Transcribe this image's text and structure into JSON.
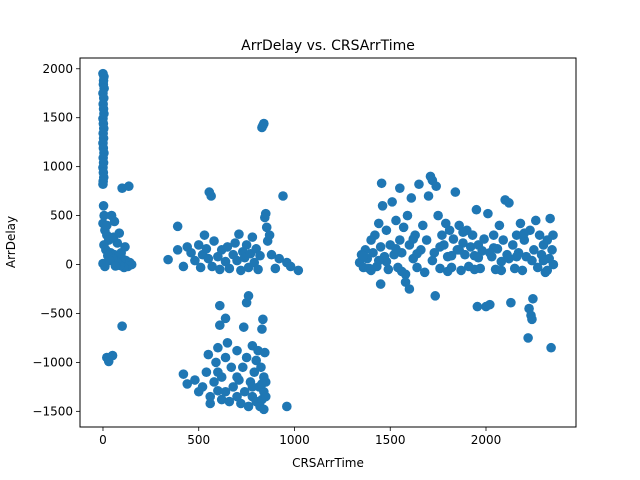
{
  "chart_data": {
    "type": "scatter",
    "title": "ArrDelay vs. CRSArrTime",
    "xlabel": "CRSArrTime",
    "ylabel": "ArrDelay",
    "xlim": [
      -120,
      2470
    ],
    "ylim": [
      -1660,
      2110
    ],
    "xticks": [
      0,
      500,
      1000,
      1500,
      2000
    ],
    "yticks": [
      -1500,
      -1000,
      -500,
      0,
      500,
      1000,
      1500,
      2000
    ],
    "xtick_labels": [
      "0",
      "500",
      "1000",
      "1500",
      "2000"
    ],
    "ytick_labels": [
      "−1500",
      "−1000",
      "−500",
      "0",
      "500",
      "1000",
      "1500",
      "2000"
    ],
    "grid": false,
    "legend": "none",
    "marker_color": "#1f77b4",
    "series": [
      {
        "points": [
          [
            0,
            1950
          ],
          [
            5,
            1920
          ],
          [
            3,
            1880
          ],
          [
            2,
            1840
          ],
          [
            6,
            1800
          ],
          [
            0,
            1750
          ],
          [
            4,
            1700
          ],
          [
            1,
            1640
          ],
          [
            3,
            1590
          ],
          [
            5,
            1540
          ],
          [
            0,
            1490
          ],
          [
            2,
            1440
          ],
          [
            4,
            1390
          ],
          [
            1,
            1340
          ],
          [
            3,
            1290
          ],
          [
            0,
            1240
          ],
          [
            2,
            1190
          ],
          [
            5,
            1140
          ],
          [
            1,
            1090
          ],
          [
            3,
            1040
          ],
          [
            0,
            990
          ],
          [
            2,
            940
          ],
          [
            4,
            890
          ],
          [
            1,
            850
          ],
          [
            0,
            820
          ],
          [
            3,
            600
          ],
          [
            6,
            500
          ],
          [
            0,
            420
          ],
          [
            10,
            350
          ],
          [
            20,
            300
          ],
          [
            30,
            250
          ],
          [
            5,
            200
          ],
          [
            15,
            150
          ],
          [
            40,
            120
          ],
          [
            60,
            100
          ],
          [
            80,
            80
          ],
          [
            100,
            60
          ],
          [
            120,
            40
          ],
          [
            140,
            20
          ],
          [
            150,
            0
          ],
          [
            130,
            -20
          ],
          [
            110,
            -30
          ],
          [
            90,
            -10
          ],
          [
            70,
            30
          ],
          [
            50,
            60
          ],
          [
            25,
            90
          ],
          [
            10,
            -20
          ],
          [
            0,
            10
          ],
          [
            35,
            40
          ],
          [
            65,
            -15
          ],
          [
            95,
            120
          ],
          [
            115,
            180
          ],
          [
            75,
            220
          ],
          [
            55,
            280
          ],
          [
            85,
            320
          ],
          [
            60,
            440
          ],
          [
            45,
            500
          ],
          [
            20,
            400
          ],
          [
            100,
            780
          ],
          [
            135,
            800
          ],
          [
            100,
            -630
          ],
          [
            20,
            -950
          ],
          [
            30,
            -990
          ],
          [
            50,
            -930
          ],
          [
            340,
            50
          ],
          [
            390,
            390
          ],
          [
            390,
            150
          ],
          [
            420,
            -20
          ],
          [
            440,
            180
          ],
          [
            460,
            120
          ],
          [
            480,
            40
          ],
          [
            500,
            200
          ],
          [
            510,
            -30
          ],
          [
            520,
            100
          ],
          [
            530,
            300
          ],
          [
            540,
            160
          ],
          [
            550,
            60
          ],
          [
            555,
            740
          ],
          [
            565,
            700
          ],
          [
            570,
            -20
          ],
          [
            580,
            240
          ],
          [
            600,
            80
          ],
          [
            610,
            -50
          ],
          [
            620,
            150
          ],
          [
            640,
            30
          ],
          [
            650,
            180
          ],
          [
            660,
            -40
          ],
          [
            680,
            100
          ],
          [
            690,
            220
          ],
          [
            700,
            40
          ],
          [
            710,
            310
          ],
          [
            720,
            -60
          ],
          [
            730,
            130
          ],
          [
            740,
            70
          ],
          [
            750,
            200
          ],
          [
            760,
            -30
          ],
          [
            770,
            110
          ],
          [
            780,
            280
          ],
          [
            790,
            20
          ],
          [
            800,
            160
          ],
          [
            810,
            -50
          ],
          [
            820,
            90
          ],
          [
            830,
            1400
          ],
          [
            840,
            1440
          ],
          [
            835,
            1420
          ],
          [
            845,
            480
          ],
          [
            850,
            520
          ],
          [
            855,
            380
          ],
          [
            860,
            240
          ],
          [
            870,
            300
          ],
          [
            880,
            100
          ],
          [
            900,
            -40
          ],
          [
            920,
            60
          ],
          [
            940,
            700
          ],
          [
            960,
            20
          ],
          [
            980,
            -20
          ],
          [
            1020,
            -60
          ],
          [
            420,
            -1120
          ],
          [
            440,
            -1220
          ],
          [
            480,
            -1180
          ],
          [
            500,
            -1300
          ],
          [
            520,
            -1250
          ],
          [
            540,
            -1100
          ],
          [
            550,
            -920
          ],
          [
            560,
            -1350
          ],
          [
            580,
            -1200
          ],
          [
            590,
            -1000
          ],
          [
            600,
            -850
          ],
          [
            600,
            -1290
          ],
          [
            610,
            -620
          ],
          [
            620,
            -1380
          ],
          [
            620,
            -1150
          ],
          [
            640,
            -950
          ],
          [
            640,
            -1300
          ],
          [
            650,
            -800
          ],
          [
            660,
            -1400
          ],
          [
            670,
            -1050
          ],
          [
            680,
            -1250
          ],
          [
            700,
            -880
          ],
          [
            700,
            -1350
          ],
          [
            710,
            -1180
          ],
          [
            720,
            -1420
          ],
          [
            730,
            -1050
          ],
          [
            735,
            -640
          ],
          [
            740,
            -1300
          ],
          [
            750,
            -950
          ],
          [
            750,
            -390
          ],
          [
            760,
            -320
          ],
          [
            760,
            -1450
          ],
          [
            770,
            -1200
          ],
          [
            780,
            -830
          ],
          [
            780,
            -1350
          ],
          [
            790,
            -1100
          ],
          [
            800,
            -1400
          ],
          [
            800,
            -980
          ],
          [
            810,
            -880
          ],
          [
            815,
            -1250
          ],
          [
            820,
            -1450
          ],
          [
            825,
            -1050
          ],
          [
            830,
            -660
          ],
          [
            830,
            -1380
          ],
          [
            835,
            -560
          ],
          [
            840,
            -1300
          ],
          [
            840,
            -1150
          ],
          [
            840,
            -1480
          ],
          [
            845,
            -900
          ],
          [
            850,
            -1200
          ],
          [
            850,
            -1350
          ],
          [
            960,
            -1450
          ],
          [
            610,
            -420
          ],
          [
            640,
            -550
          ],
          [
            560,
            -1420
          ],
          [
            600,
            -1100
          ],
          [
            700,
            -1150
          ],
          [
            780,
            -1250
          ],
          [
            830,
            -1220
          ],
          [
            1340,
            20
          ],
          [
            1350,
            100
          ],
          [
            1360,
            -30
          ],
          [
            1370,
            150
          ],
          [
            1380,
            60
          ],
          [
            1390,
            -40
          ],
          [
            1400,
            250
          ],
          [
            1410,
            120
          ],
          [
            1420,
            300
          ],
          [
            1430,
            -20
          ],
          [
            1440,
            420
          ],
          [
            1450,
            180
          ],
          [
            1450,
            -200
          ],
          [
            1455,
            830
          ],
          [
            1460,
            600
          ],
          [
            1470,
            80
          ],
          [
            1480,
            350
          ],
          [
            1490,
            -50
          ],
          [
            1500,
            200
          ],
          [
            1510,
            640
          ],
          [
            1520,
            100
          ],
          [
            1530,
            450
          ],
          [
            1540,
            -30
          ],
          [
            1550,
            250
          ],
          [
            1550,
            780
          ],
          [
            1560,
            120
          ],
          [
            1570,
            380
          ],
          [
            1580,
            -100
          ],
          [
            1580,
            -180
          ],
          [
            1590,
            500
          ],
          [
            1600,
            200
          ],
          [
            1600,
            -250
          ],
          [
            1610,
            680
          ],
          [
            1620,
            60
          ],
          [
            1630,
            300
          ],
          [
            1640,
            -30
          ],
          [
            1650,
            820
          ],
          [
            1660,
            150
          ],
          [
            1670,
            400
          ],
          [
            1680,
            -80
          ],
          [
            1690,
            250
          ],
          [
            1700,
            700
          ],
          [
            1710,
            900
          ],
          [
            1720,
            860
          ],
          [
            1730,
            120
          ],
          [
            1735,
            -320
          ],
          [
            1740,
            800
          ],
          [
            1750,
            500
          ],
          [
            1760,
            -40
          ],
          [
            1770,
            300
          ],
          [
            1780,
            200
          ],
          [
            1790,
            420
          ],
          [
            1800,
            80
          ],
          [
            1810,
            350
          ],
          [
            1820,
            -30
          ],
          [
            1830,
            260
          ],
          [
            1840,
            740
          ],
          [
            1850,
            150
          ],
          [
            1860,
            400
          ],
          [
            1870,
            -60
          ],
          [
            1880,
            220
          ],
          [
            1890,
            100
          ],
          [
            1900,
            350
          ],
          [
            1910,
            -20
          ],
          [
            1920,
            180
          ],
          [
            1930,
            300
          ],
          [
            1940,
            90
          ],
          [
            1950,
            560
          ],
          [
            1955,
            -430
          ],
          [
            1960,
            200
          ],
          [
            1970,
            -40
          ],
          [
            1980,
            140
          ],
          [
            1990,
            260
          ],
          [
            2000,
            -430
          ],
          [
            2010,
            520
          ],
          [
            2020,
            -410
          ],
          [
            2030,
            80
          ],
          [
            2040,
            300
          ],
          [
            2050,
            -50
          ],
          [
            2060,
            160
          ],
          [
            2070,
            400
          ],
          [
            2080,
            30
          ],
          [
            2090,
            250
          ],
          [
            2100,
            660
          ],
          [
            2110,
            100
          ],
          [
            2120,
            630
          ],
          [
            2130,
            -390
          ],
          [
            2140,
            200
          ],
          [
            2150,
            -40
          ],
          [
            2160,
            300
          ],
          [
            2170,
            120
          ],
          [
            2180,
            420
          ],
          [
            2190,
            -60
          ],
          [
            2200,
            250
          ],
          [
            2210,
            80
          ],
          [
            2220,
            -750
          ],
          [
            2225,
            -450
          ],
          [
            2230,
            350
          ],
          [
            2235,
            -520
          ],
          [
            2240,
            -560
          ],
          [
            2245,
            -350
          ],
          [
            2250,
            150
          ],
          [
            2260,
            450
          ],
          [
            2270,
            -30
          ],
          [
            2280,
            300
          ],
          [
            2290,
            100
          ],
          [
            2300,
            200
          ],
          [
            2310,
            -80
          ],
          [
            2320,
            250
          ],
          [
            2330,
            60
          ],
          [
            2335,
            470
          ],
          [
            2340,
            -850
          ],
          [
            2345,
            150
          ],
          [
            2350,
            300
          ],
          [
            2352,
            0
          ],
          [
            1360,
            90
          ],
          [
            1480,
            30
          ],
          [
            1530,
            160
          ],
          [
            1620,
            260
          ],
          [
            1760,
            180
          ],
          [
            1820,
            90
          ],
          [
            1880,
            330
          ],
          [
            1960,
            70
          ],
          [
            2040,
            170
          ],
          [
            2120,
            60
          ],
          [
            2200,
            320
          ],
          [
            2300,
            40
          ],
          [
            1400,
            -60
          ],
          [
            1440,
            40
          ],
          [
            1560,
            -70
          ],
          [
            1640,
            110
          ],
          [
            1720,
            40
          ],
          [
            1800,
            -70
          ],
          [
            1860,
            150
          ],
          [
            1940,
            -50
          ],
          [
            2020,
            120
          ],
          [
            2080,
            -60
          ],
          [
            2160,
            80
          ],
          [
            2240,
            40
          ],
          [
            2320,
            -60
          ]
        ]
      }
    ]
  }
}
